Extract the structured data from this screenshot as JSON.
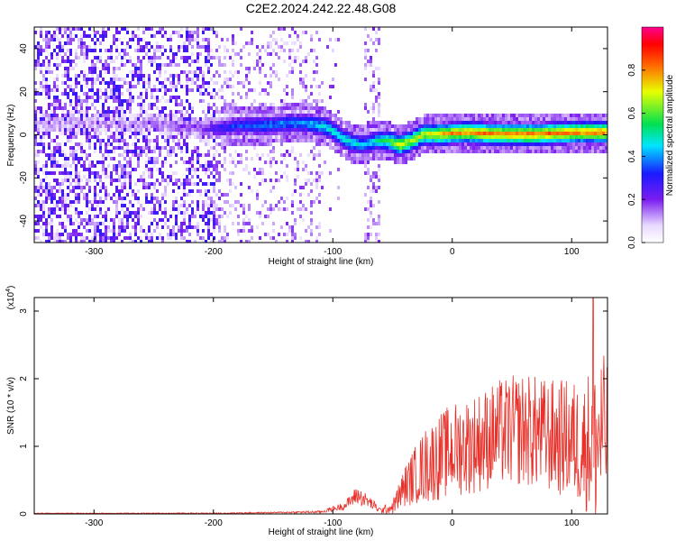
{
  "title": "C2E2.2024.242.22.48.G08",
  "colors": {
    "snr_line": "#e8312a",
    "axes": "#000000",
    "background": "#ffffff"
  },
  "chart_data": [
    {
      "type": "heatmap",
      "xlabel": "Height of straight line (km)",
      "ylabel": "Frequency (Hz)",
      "xlim": [
        -350,
        130
      ],
      "ylim": [
        -50,
        50
      ],
      "x_ticks": [
        -300,
        -200,
        -100,
        0,
        100
      ],
      "y_ticks": [
        -40,
        -20,
        0,
        20,
        40
      ],
      "colorbar": {
        "label": "Normalized spectral amplitude",
        "range": [
          0,
          1
        ],
        "ticks": [
          0.0,
          0.2,
          0.4,
          0.6,
          0.8
        ],
        "colormap": "rainbow (white -> violet -> blue -> cyan -> green -> yellow -> red -> magenta)"
      },
      "ridge": [
        {
          "x": -270,
          "y": 6,
          "amp": 0.12
        },
        {
          "x": -250,
          "y": 6,
          "amp": 0.15
        },
        {
          "x": -230,
          "y": 5,
          "amp": 0.18
        },
        {
          "x": -210,
          "y": 4,
          "amp": 0.2
        },
        {
          "x": -195,
          "y": 4,
          "amp": 0.3
        },
        {
          "x": -180,
          "y": 5,
          "amp": 0.35
        },
        {
          "x": -160,
          "y": 5,
          "amp": 0.4
        },
        {
          "x": -140,
          "y": 6,
          "amp": 0.42
        },
        {
          "x": -120,
          "y": 6,
          "amp": 0.45
        },
        {
          "x": -105,
          "y": 4,
          "amp": 0.5
        },
        {
          "x": -95,
          "y": 0,
          "amp": 0.5
        },
        {
          "x": -85,
          "y": -3,
          "amp": 0.5
        },
        {
          "x": -75,
          "y": -4,
          "amp": 0.45
        },
        {
          "x": -65,
          "y": -2,
          "amp": 0.5
        },
        {
          "x": -55,
          "y": -2,
          "amp": 0.6
        },
        {
          "x": -45,
          "y": -4,
          "amp": 0.75
        },
        {
          "x": -35,
          "y": -2,
          "amp": 0.7
        },
        {
          "x": -25,
          "y": 1,
          "amp": 0.72
        },
        {
          "x": -10,
          "y": 1,
          "amp": 0.8
        },
        {
          "x": 10,
          "y": 2,
          "amp": 0.82
        },
        {
          "x": 40,
          "y": 1,
          "amp": 0.85
        },
        {
          "x": 70,
          "y": 1,
          "amp": 0.85
        },
        {
          "x": 100,
          "y": 2,
          "amp": 0.85
        },
        {
          "x": 130,
          "y": 2,
          "amp": 0.85
        }
      ]
    },
    {
      "type": "line",
      "xlabel": "Height of straight line (km)",
      "ylabel": "SNR (10 * v/v)",
      "y_multiplier": "(x10^4)",
      "xlim": [
        -350,
        130
      ],
      "ylim": [
        0,
        3.2
      ],
      "x_ticks": [
        -300,
        -200,
        -100,
        0,
        100
      ],
      "y_ticks": [
        0,
        1,
        2,
        3
      ],
      "grid": false,
      "series": [
        {
          "color": "#e8312a",
          "envelope": {
            "x": [
              -350,
              -300,
              -200,
              -150,
              -110,
              -90,
              -80,
              -70,
              -60,
              -50,
              -40,
              -30,
              -20,
              -10,
              0,
              20,
              40,
              60,
              80,
              100,
              110,
              115,
              120,
              125,
              130
            ],
            "mean": [
              0.01,
              0.01,
              0.01,
              0.02,
              0.03,
              0.12,
              0.28,
              0.18,
              0.05,
              0.1,
              0.4,
              0.6,
              0.75,
              0.85,
              0.95,
              1.05,
              1.2,
              1.25,
              1.15,
              1.1,
              1.0,
              1.1,
              1.0,
              1.2,
              1.2
            ],
            "amp": [
              0.005,
              0.005,
              0.008,
              0.01,
              0.02,
              0.06,
              0.14,
              0.1,
              0.04,
              0.1,
              0.3,
              0.45,
              0.6,
              0.65,
              0.7,
              0.75,
              0.8,
              0.85,
              0.85,
              0.9,
              0.95,
              1.1,
              1.4,
              1.2,
              1.1
            ]
          },
          "peak": {
            "x": 118,
            "y": 3.2
          }
        }
      ]
    }
  ]
}
